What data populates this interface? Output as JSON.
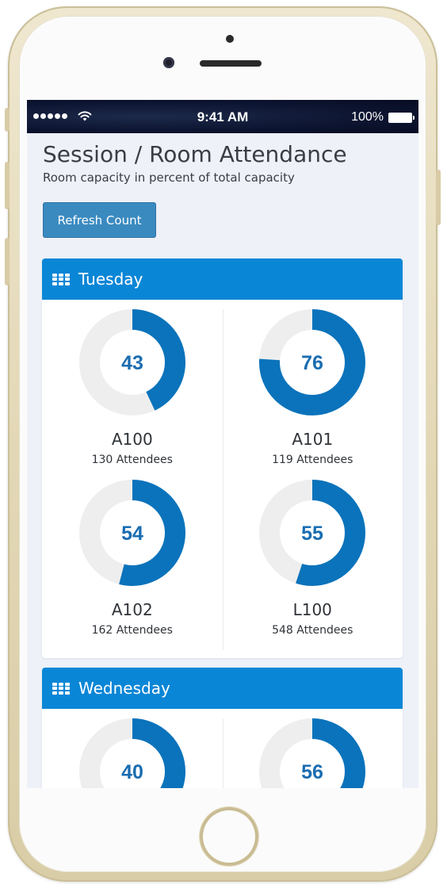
{
  "status_bar": {
    "time": "9:41 AM",
    "battery": "100%"
  },
  "page": {
    "title": "Session / Room Attendance",
    "subtitle": "Room capacity in percent of total capacity",
    "refresh_label": "Refresh Count"
  },
  "colors": {
    "accent": "#0a86d6",
    "donut_fill": "#0b73bb",
    "donut_track": "#eeeeee",
    "button": "#3a8ac0"
  },
  "days": [
    {
      "name": "Tuesday",
      "icon": "grid-icon",
      "rooms": [
        {
          "room": "A100",
          "percent": 43,
          "attendees": "130 Attendees"
        },
        {
          "room": "A101",
          "percent": 76,
          "attendees": "119 Attendees"
        },
        {
          "room": "A102",
          "percent": 54,
          "attendees": "162 Attendees"
        },
        {
          "room": "L100",
          "percent": 55,
          "attendees": "548 Attendees"
        }
      ]
    },
    {
      "name": "Wednesday",
      "icon": "grid-icon",
      "rooms": [
        {
          "room": "",
          "percent": 40,
          "attendees": ""
        },
        {
          "room": "",
          "percent": 56,
          "attendees": ""
        }
      ]
    }
  ]
}
